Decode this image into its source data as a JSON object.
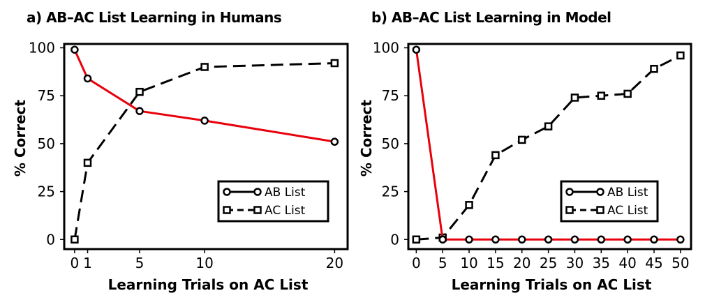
{
  "colors": {
    "ab_series": "#e8000b",
    "ac_series": "#000000",
    "frame": "#000000"
  },
  "chart_data": [
    {
      "type": "line",
      "title": "a) AB–AC List Learning in Humans",
      "xlabel": "Learning Trials on AC List",
      "ylabel": "% Correct",
      "xlim": [
        -0.8,
        21
      ],
      "ylim": [
        -5,
        102
      ],
      "xticks": [
        0,
        1,
        5,
        10,
        20
      ],
      "yticks": [
        0,
        25,
        50,
        75,
        100
      ],
      "grid": false,
      "legend_position": "lower-right",
      "series": [
        {
          "name": "AB List",
          "marker": "circle",
          "line": "solid",
          "color": "#e8000b",
          "x": [
            0,
            1,
            5,
            10,
            20
          ],
          "y": [
            99,
            84,
            67,
            62,
            51
          ]
        },
        {
          "name": "AC List",
          "marker": "square",
          "line": "dashed",
          "color": "#000000",
          "x": [
            0,
            1,
            5,
            10,
            20
          ],
          "y": [
            0,
            40,
            77,
            90,
            92
          ]
        }
      ]
    },
    {
      "type": "line",
      "title": "b) AB–AC List Learning in Model",
      "xlabel": "Learning Trials on AC List",
      "ylabel": "% Correct",
      "xlim": [
        -1.5,
        52
      ],
      "ylim": [
        -5,
        102
      ],
      "xticks": [
        0,
        5,
        10,
        15,
        20,
        25,
        30,
        35,
        40,
        45,
        50
      ],
      "yticks": [
        0,
        25,
        50,
        75,
        100
      ],
      "grid": false,
      "legend_position": "lower-right",
      "series": [
        {
          "name": "AB List",
          "marker": "circle",
          "line": "solid",
          "color": "#e8000b",
          "x": [
            0,
            5,
            10,
            15,
            20,
            25,
            30,
            35,
            40,
            45,
            50
          ],
          "y": [
            99,
            0,
            0,
            0,
            0,
            0,
            0,
            0,
            0,
            0,
            0
          ]
        },
        {
          "name": "AC List",
          "marker": "square",
          "line": "dashed",
          "color": "#000000",
          "x": [
            0,
            5,
            10,
            15,
            20,
            25,
            30,
            35,
            40,
            45,
            50
          ],
          "y": [
            0,
            1,
            18,
            44,
            52,
            59,
            74,
            75,
            76,
            89,
            96
          ]
        }
      ]
    }
  ]
}
